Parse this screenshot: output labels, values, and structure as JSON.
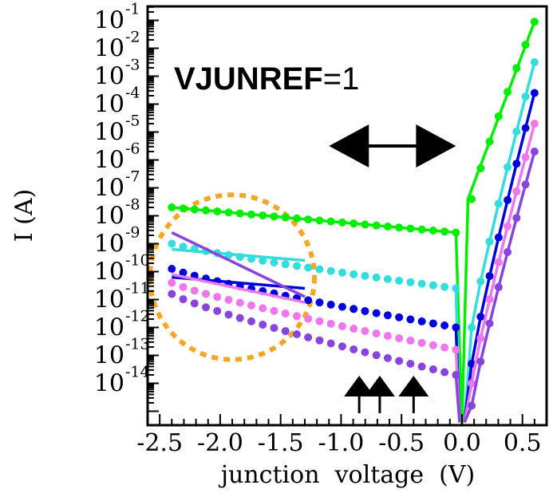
{
  "chart_data": {
    "type": "line",
    "title": "",
    "xlabel": "junction  voltage  (V)",
    "ylabel": "I (A)",
    "xlim": [
      -2.6,
      0.7
    ],
    "ylim": [
      -15.5,
      -0.5
    ],
    "y_scale": "log",
    "x_ticks": [
      {
        "value": -2.5,
        "label": "-2.5"
      },
      {
        "value": -2.0,
        "label": "-2.0"
      },
      {
        "value": -1.5,
        "label": "-1.5"
      },
      {
        "value": -1.0,
        "label": "-1.0"
      },
      {
        "value": -0.5,
        "label": "-0.5"
      },
      {
        "value": 0.0,
        "label": "0.0"
      },
      {
        "value": 0.5,
        "label": "0.5"
      }
    ],
    "y_ticks": [
      {
        "exp": -1,
        "base": "10",
        "sup": "-1"
      },
      {
        "exp": -2,
        "base": "10",
        "sup": "-2"
      },
      {
        "exp": -3,
        "base": "10",
        "sup": "-3"
      },
      {
        "exp": -4,
        "base": "10",
        "sup": "-4"
      },
      {
        "exp": -5,
        "base": "10",
        "sup": "-5"
      },
      {
        "exp": -6,
        "base": "10",
        "sup": "-6"
      },
      {
        "exp": -7,
        "base": "10",
        "sup": "-7"
      },
      {
        "exp": -8,
        "base": "10",
        "sup": "-8"
      },
      {
        "exp": -9,
        "base": "10",
        "sup": "-9"
      },
      {
        "exp": -10,
        "base": "10",
        "sup": "-10"
      },
      {
        "exp": -11,
        "base": "10",
        "sup": "-11"
      },
      {
        "exp": -12,
        "base": "10",
        "sup": "-12"
      },
      {
        "exp": -13,
        "base": "10",
        "sup": "-13"
      },
      {
        "exp": -14,
        "base": "10",
        "sup": "-14"
      }
    ],
    "annotation": {
      "bold": "VJUNREF",
      "rest": "=1"
    },
    "grid": false,
    "series": [
      {
        "color": "#00ee00",
        "line": {
          "left_x": -2.4,
          "left_y": -7.7,
          "knee_x": -0.05,
          "knee_y": -8.6,
          "dip_x": 0.0,
          "dip_y": -15.5,
          "on_x": 0.05,
          "on_y": -7.4,
          "right_x": 0.6,
          "right_y": -1.05
        },
        "dots": {
          "left_y": -7.7,
          "knee_y": -8.6,
          "right_y": -1.05
        }
      },
      {
        "color": "#33dddd",
        "line": {
          "left_x": -2.4,
          "left_y": -9.2,
          "knee_x": -1.3,
          "knee_y": -9.6
        },
        "dots": {
          "left_y": -9.0,
          "knee_y": -10.6,
          "right_y": -2.5
        }
      },
      {
        "color": "#0000dd",
        "line": {
          "left_x": -2.4,
          "left_y": -10.2,
          "knee_x": -1.3,
          "knee_y": -10.6
        },
        "dots": {
          "left_y": -9.9,
          "knee_y": -12.0,
          "right_y": -3.6
        }
      },
      {
        "color": "#ee77ee",
        "line": {
          "left_x": -2.4,
          "left_y": -10.1,
          "knee_x": -1.3,
          "knee_y": -11.1
        },
        "dots": {
          "left_y": -10.4,
          "knee_y": -12.8,
          "right_y": -4.7
        }
      },
      {
        "color": "#8844dd",
        "line": {
          "left_x": -2.4,
          "left_y": -8.6,
          "knee_x": -1.3,
          "knee_y": -10.9
        },
        "dots": {
          "left_y": -10.8,
          "knee_y": -13.7,
          "right_y": -5.7
        }
      }
    ],
    "arrows_up_x": [
      -0.85,
      -0.68,
      -0.4
    ],
    "double_arrow_x": [
      -1.1,
      -0.05
    ],
    "double_arrow_y": -5.5,
    "highlight_ellipse": {
      "cx": -1.9,
      "cy": -10.2,
      "rx": 0.68,
      "ry_dec": 2.95,
      "color": "#f5a623"
    }
  }
}
